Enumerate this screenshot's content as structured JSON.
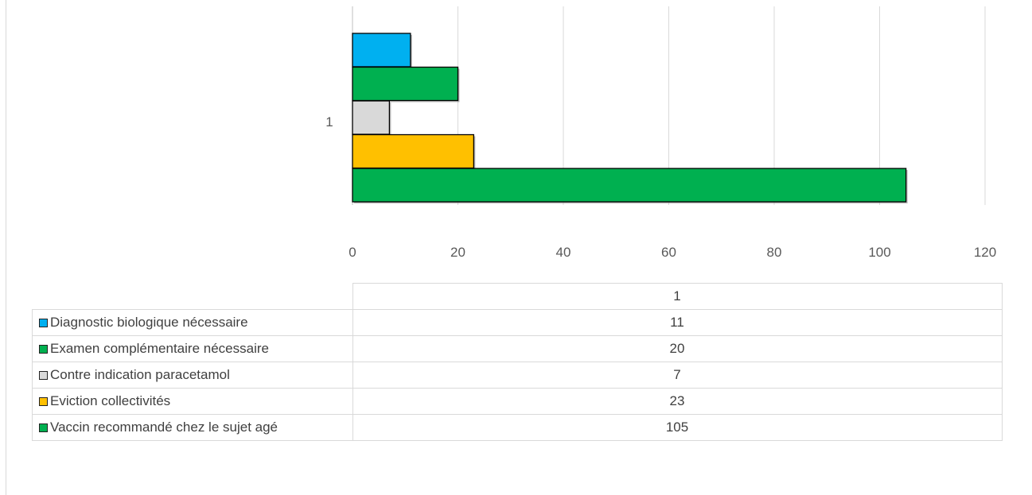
{
  "chart_data": {
    "type": "bar",
    "orientation": "horizontal",
    "categories": [
      "1"
    ],
    "xlim": [
      0,
      120
    ],
    "x_ticks": [
      0,
      20,
      40,
      60,
      80,
      100,
      120
    ],
    "grid": true,
    "legend_placement": "data-table-below",
    "table_header": "1",
    "series": [
      {
        "name": "Diagnostic biologique nécessaire",
        "values": [
          11
        ],
        "color": "#00B0F0"
      },
      {
        "name": "Examen complémentaire nécessaire",
        "values": [
          20
        ],
        "color": "#00B050"
      },
      {
        "name": "Contre indication paracetamol",
        "values": [
          7
        ],
        "color": "#D9D9D9"
      },
      {
        "name": "Eviction collectivités",
        "values": [
          23
        ],
        "color": "#FFC000"
      },
      {
        "name": "Vaccin recommandé chez le sujet agé",
        "values": [
          105
        ],
        "color": "#00B050"
      }
    ]
  }
}
